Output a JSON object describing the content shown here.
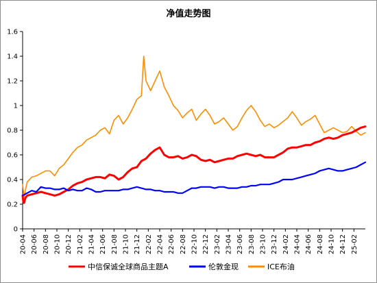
{
  "chart_data": {
    "type": "line",
    "title": "净值走势图",
    "xlabel": "",
    "ylabel": "",
    "ylim": [
      0,
      1.6
    ],
    "yticks": [
      "0",
      "0.2",
      "0.4",
      "0.6",
      "0.8",
      "1",
      "1.2",
      "1.4",
      "1.6"
    ],
    "x_ticks": [
      "20-04",
      "20-06",
      "20-08",
      "20-10",
      "20-12",
      "21-02",
      "21-04",
      "21-06",
      "21-08",
      "21-10",
      "21-12",
      "22-02",
      "22-04",
      "22-06",
      "22-08",
      "22-10",
      "22-12",
      "23-02",
      "23-04",
      "23-06",
      "23-08",
      "23-10",
      "23-12",
      "24-02",
      "24-04",
      "24-06",
      "24-08",
      "24-10",
      "24-12",
      "25-02"
    ],
    "x_range": [
      "2020-04",
      "2025-04"
    ],
    "grid": false,
    "legend_position": "bottom",
    "series": [
      {
        "name": "中信保诚全球商品主题A",
        "color": "#ff0000",
        "values": [
          [
            0.0,
            0.27
          ],
          [
            0.15,
            0.22
          ],
          [
            0.3,
            0.21
          ],
          [
            0.6,
            0.25
          ],
          [
            1,
            0.27
          ],
          [
            2,
            0.28
          ],
          [
            3,
            0.29
          ],
          [
            4,
            0.3
          ],
          [
            5,
            0.29
          ],
          [
            6,
            0.28
          ],
          [
            7,
            0.27
          ],
          [
            8,
            0.28
          ],
          [
            9,
            0.3
          ],
          [
            10,
            0.32
          ],
          [
            11,
            0.35
          ],
          [
            12,
            0.37
          ],
          [
            13,
            0.38
          ],
          [
            14,
            0.4
          ],
          [
            15,
            0.41
          ],
          [
            16,
            0.42
          ],
          [
            17,
            0.42
          ],
          [
            18,
            0.41
          ],
          [
            19,
            0.44
          ],
          [
            20,
            0.43
          ],
          [
            21,
            0.4
          ],
          [
            22,
            0.42
          ],
          [
            23,
            0.46
          ],
          [
            24,
            0.49
          ],
          [
            25,
            0.5
          ],
          [
            26,
            0.55
          ],
          [
            27,
            0.57
          ],
          [
            28,
            0.61
          ],
          [
            29,
            0.64
          ],
          [
            30,
            0.66
          ],
          [
            31,
            0.6
          ],
          [
            32,
            0.58
          ],
          [
            33,
            0.58
          ],
          [
            34,
            0.59
          ],
          [
            35,
            0.57
          ],
          [
            36,
            0.58
          ],
          [
            37,
            0.6
          ],
          [
            38,
            0.59
          ],
          [
            39,
            0.56
          ],
          [
            40,
            0.55
          ],
          [
            41,
            0.56
          ],
          [
            42,
            0.54
          ],
          [
            43,
            0.55
          ],
          [
            44,
            0.56
          ],
          [
            45,
            0.57
          ],
          [
            46,
            0.57
          ],
          [
            47,
            0.59
          ],
          [
            48,
            0.6
          ],
          [
            49,
            0.61
          ],
          [
            50,
            0.6
          ],
          [
            51,
            0.59
          ],
          [
            52,
            0.6
          ],
          [
            53,
            0.58
          ],
          [
            54,
            0.58
          ],
          [
            55,
            0.58
          ],
          [
            56,
            0.6
          ],
          [
            57,
            0.62
          ],
          [
            58,
            0.65
          ],
          [
            59,
            0.66
          ],
          [
            60,
            0.66
          ],
          [
            61,
            0.67
          ],
          [
            62,
            0.68
          ],
          [
            63,
            0.68
          ],
          [
            64,
            0.7
          ],
          [
            65,
            0.71
          ],
          [
            66,
            0.73
          ],
          [
            67,
            0.74
          ],
          [
            68,
            0.73
          ],
          [
            69,
            0.74
          ],
          [
            70,
            0.76
          ],
          [
            71,
            0.77
          ],
          [
            72,
            0.78
          ],
          [
            73,
            0.8
          ],
          [
            74,
            0.82
          ],
          [
            75,
            0.83
          ]
        ]
      },
      {
        "name": "伦敦金现",
        "color": "#0000ff",
        "values": [
          [
            0,
            0.27
          ],
          [
            0.5,
            0.28
          ],
          [
            1,
            0.29
          ],
          [
            2,
            0.31
          ],
          [
            3,
            0.3
          ],
          [
            4,
            0.34
          ],
          [
            5,
            0.33
          ],
          [
            6,
            0.33
          ],
          [
            7,
            0.32
          ],
          [
            8,
            0.32
          ],
          [
            9,
            0.33
          ],
          [
            10,
            0.31
          ],
          [
            11,
            0.32
          ],
          [
            12,
            0.31
          ],
          [
            13,
            0.31
          ],
          [
            14,
            0.33
          ],
          [
            15,
            0.32
          ],
          [
            16,
            0.3
          ],
          [
            17,
            0.3
          ],
          [
            18,
            0.31
          ],
          [
            19,
            0.31
          ],
          [
            20,
            0.31
          ],
          [
            21,
            0.31
          ],
          [
            22,
            0.32
          ],
          [
            23,
            0.32
          ],
          [
            24,
            0.33
          ],
          [
            25,
            0.34
          ],
          [
            26,
            0.33
          ],
          [
            27,
            0.32
          ],
          [
            28,
            0.32
          ],
          [
            29,
            0.31
          ],
          [
            30,
            0.31
          ],
          [
            31,
            0.3
          ],
          [
            32,
            0.3
          ],
          [
            33,
            0.3
          ],
          [
            34,
            0.29
          ],
          [
            35,
            0.29
          ],
          [
            36,
            0.31
          ],
          [
            37,
            0.33
          ],
          [
            38,
            0.33
          ],
          [
            39,
            0.34
          ],
          [
            40,
            0.34
          ],
          [
            41,
            0.34
          ],
          [
            42,
            0.33
          ],
          [
            43,
            0.34
          ],
          [
            44,
            0.34
          ],
          [
            45,
            0.33
          ],
          [
            46,
            0.33
          ],
          [
            47,
            0.33
          ],
          [
            48,
            0.34
          ],
          [
            49,
            0.34
          ],
          [
            50,
            0.35
          ],
          [
            51,
            0.35
          ],
          [
            52,
            0.36
          ],
          [
            53,
            0.36
          ],
          [
            54,
            0.36
          ],
          [
            55,
            0.37
          ],
          [
            56,
            0.38
          ],
          [
            57,
            0.4
          ],
          [
            58,
            0.4
          ],
          [
            59,
            0.4
          ],
          [
            60,
            0.41
          ],
          [
            61,
            0.42
          ],
          [
            62,
            0.43
          ],
          [
            63,
            0.44
          ],
          [
            64,
            0.45
          ],
          [
            65,
            0.47
          ],
          [
            66,
            0.48
          ],
          [
            67,
            0.49
          ],
          [
            68,
            0.48
          ],
          [
            69,
            0.47
          ],
          [
            70,
            0.47
          ],
          [
            71,
            0.48
          ],
          [
            72,
            0.49
          ],
          [
            73,
            0.5
          ],
          [
            74,
            0.52
          ],
          [
            75,
            0.54
          ]
        ]
      },
      {
        "name": "ICE布油",
        "color": "#ff8c00",
        "values": [
          [
            0,
            0.36
          ],
          [
            0.2,
            0.3
          ],
          [
            0.4,
            0.26
          ],
          [
            0.7,
            0.33
          ],
          [
            1,
            0.38
          ],
          [
            2,
            0.42
          ],
          [
            3,
            0.43
          ],
          [
            4,
            0.45
          ],
          [
            5,
            0.47
          ],
          [
            6,
            0.47
          ],
          [
            7,
            0.43
          ],
          [
            8,
            0.49
          ],
          [
            9,
            0.52
          ],
          [
            10,
            0.57
          ],
          [
            11,
            0.62
          ],
          [
            12,
            0.66
          ],
          [
            13,
            0.68
          ],
          [
            14,
            0.72
          ],
          [
            15,
            0.74
          ],
          [
            16,
            0.76
          ],
          [
            17,
            0.8
          ],
          [
            18,
            0.82
          ],
          [
            19,
            0.77
          ],
          [
            20,
            0.88
          ],
          [
            21,
            0.92
          ],
          [
            22,
            0.85
          ],
          [
            23,
            0.9
          ],
          [
            24,
            0.97
          ],
          [
            25,
            1.05
          ],
          [
            26,
            1.08
          ],
          [
            26.5,
            1.4
          ],
          [
            27,
            1.2
          ],
          [
            28,
            1.12
          ],
          [
            29,
            1.2
          ],
          [
            30,
            1.28
          ],
          [
            31,
            1.15
          ],
          [
            32,
            1.08
          ],
          [
            33,
            1.0
          ],
          [
            34,
            0.96
          ],
          [
            35,
            0.9
          ],
          [
            36,
            0.94
          ],
          [
            37,
            0.97
          ],
          [
            38,
            0.88
          ],
          [
            39,
            0.93
          ],
          [
            40,
            0.97
          ],
          [
            41,
            0.92
          ],
          [
            42,
            0.85
          ],
          [
            43,
            0.87
          ],
          [
            44,
            0.9
          ],
          [
            45,
            0.85
          ],
          [
            46,
            0.8
          ],
          [
            47,
            0.83
          ],
          [
            48,
            0.9
          ],
          [
            49,
            0.96
          ],
          [
            50,
            1.0
          ],
          [
            51,
            0.95
          ],
          [
            52,
            0.88
          ],
          [
            53,
            0.83
          ],
          [
            54,
            0.85
          ],
          [
            55,
            0.82
          ],
          [
            56,
            0.84
          ],
          [
            57,
            0.87
          ],
          [
            58,
            0.9
          ],
          [
            59,
            0.95
          ],
          [
            60,
            0.9
          ],
          [
            61,
            0.84
          ],
          [
            62,
            0.87
          ],
          [
            63,
            0.89
          ],
          [
            64,
            0.92
          ],
          [
            65,
            0.85
          ],
          [
            66,
            0.78
          ],
          [
            67,
            0.8
          ],
          [
            68,
            0.82
          ],
          [
            69,
            0.8
          ],
          [
            70,
            0.78
          ],
          [
            71,
            0.79
          ],
          [
            72,
            0.83
          ],
          [
            73,
            0.79
          ],
          [
            74,
            0.76
          ],
          [
            75,
            0.78
          ]
        ]
      }
    ]
  }
}
